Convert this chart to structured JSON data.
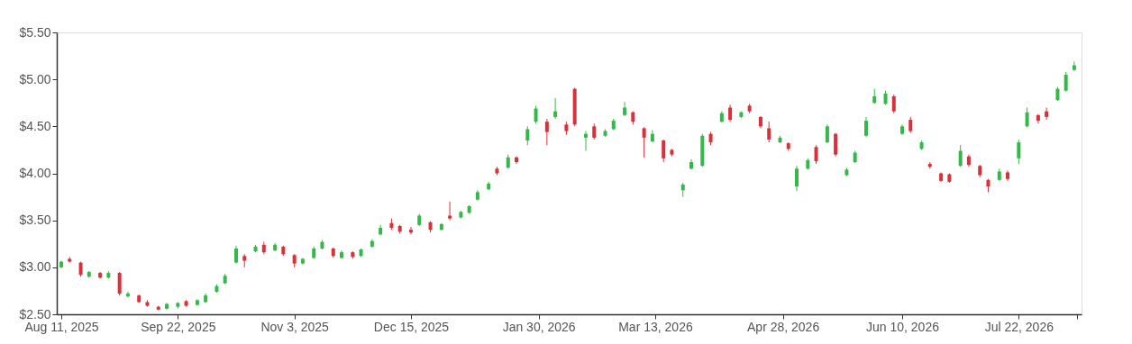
{
  "chart_data": {
    "type": "candlestick",
    "x": [
      "2025-08-11",
      "2025-08-14",
      "2025-08-18",
      "2025-08-21",
      "2025-08-25",
      "2025-08-28",
      "2025-09-01",
      "2025-09-04",
      "2025-09-08",
      "2025-09-11",
      "2025-09-15",
      "2025-09-18",
      "2025-09-22",
      "2025-09-25",
      "2025-09-29",
      "2025-10-02",
      "2025-10-06",
      "2025-10-09",
      "2025-10-13",
      "2025-10-16",
      "2025-10-20",
      "2025-10-23",
      "2025-10-27",
      "2025-10-30",
      "2025-11-03",
      "2025-11-06",
      "2025-11-10",
      "2025-11-13",
      "2025-11-17",
      "2025-11-20",
      "2025-11-24",
      "2025-11-27",
      "2025-12-01",
      "2025-12-04",
      "2025-12-08",
      "2025-12-11",
      "2025-12-15",
      "2025-12-18",
      "2025-12-22",
      "2025-12-26",
      "2025-12-29",
      "2026-01-02",
      "2026-01-05",
      "2026-01-08",
      "2026-01-12",
      "2026-01-15",
      "2026-01-19",
      "2026-01-22",
      "2026-01-26",
      "2026-01-29",
      "2026-02-02",
      "2026-02-05",
      "2026-02-09",
      "2026-02-12",
      "2026-02-16",
      "2026-02-19",
      "2026-02-23",
      "2026-02-26",
      "2026-03-02",
      "2026-03-05",
      "2026-03-09",
      "2026-03-12",
      "2026-03-16",
      "2026-03-19",
      "2026-03-23",
      "2026-03-26",
      "2026-03-30",
      "2026-04-02",
      "2026-04-06",
      "2026-04-09",
      "2026-04-13",
      "2026-04-16",
      "2026-04-20",
      "2026-04-23",
      "2026-04-27",
      "2026-04-30",
      "2026-05-03",
      "2026-05-07",
      "2026-05-10",
      "2026-05-14",
      "2026-05-17",
      "2026-05-21",
      "2026-05-24",
      "2026-05-28",
      "2026-05-31",
      "2026-06-04",
      "2026-06-07",
      "2026-06-10",
      "2026-06-13",
      "2026-06-17",
      "2026-06-20",
      "2026-06-24",
      "2026-06-27",
      "2026-07-01",
      "2026-07-04",
      "2026-07-08",
      "2026-07-11",
      "2026-07-15",
      "2026-07-18",
      "2026-07-22",
      "2026-07-25",
      "2026-07-29",
      "2026-08-01",
      "2026-08-05",
      "2026-08-08",
      "2026-08-11"
    ],
    "ohlc": [
      [
        3.0,
        3.07,
        2.99,
        3.06
      ],
      [
        3.09,
        3.11,
        3.05,
        3.06
      ],
      [
        3.05,
        3.06,
        2.9,
        2.92
      ],
      [
        2.9,
        2.96,
        2.89,
        2.95
      ],
      [
        2.94,
        2.95,
        2.88,
        2.89
      ],
      [
        2.89,
        2.96,
        2.88,
        2.94
      ],
      [
        2.94,
        2.95,
        2.7,
        2.72
      ],
      [
        2.69,
        2.74,
        2.68,
        2.72
      ],
      [
        2.7,
        2.71,
        2.62,
        2.63
      ],
      [
        2.63,
        2.65,
        2.58,
        2.59
      ],
      [
        2.58,
        2.59,
        2.54,
        2.55
      ],
      [
        2.56,
        2.62,
        2.55,
        2.61
      ],
      [
        2.58,
        2.63,
        2.56,
        2.62
      ],
      [
        2.64,
        2.65,
        2.58,
        2.59
      ],
      [
        2.6,
        2.66,
        2.59,
        2.65
      ],
      [
        2.63,
        2.72,
        2.62,
        2.7
      ],
      [
        2.74,
        2.82,
        2.73,
        2.8
      ],
      [
        2.83,
        2.93,
        2.82,
        2.91
      ],
      [
        3.05,
        3.23,
        3.04,
        3.2
      ],
      [
        3.12,
        3.14,
        3.0,
        3.07
      ],
      [
        3.17,
        3.24,
        3.16,
        3.22
      ],
      [
        3.24,
        3.27,
        3.14,
        3.16
      ],
      [
        3.18,
        3.26,
        3.17,
        3.24
      ],
      [
        3.22,
        3.23,
        3.12,
        3.14
      ],
      [
        3.13,
        3.14,
        3.0,
        3.04
      ],
      [
        3.04,
        3.1,
        3.03,
        3.09
      ],
      [
        3.1,
        3.22,
        3.09,
        3.2
      ],
      [
        3.2,
        3.29,
        3.19,
        3.27
      ],
      [
        3.2,
        3.21,
        3.1,
        3.12
      ],
      [
        3.1,
        3.18,
        3.09,
        3.16
      ],
      [
        3.16,
        3.17,
        3.09,
        3.11
      ],
      [
        3.12,
        3.2,
        3.11,
        3.19
      ],
      [
        3.22,
        3.3,
        3.21,
        3.28
      ],
      [
        3.35,
        3.45,
        3.34,
        3.42
      ],
      [
        3.47,
        3.52,
        3.4,
        3.42
      ],
      [
        3.44,
        3.45,
        3.36,
        3.38
      ],
      [
        3.4,
        3.43,
        3.35,
        3.37
      ],
      [
        3.45,
        3.57,
        3.44,
        3.55
      ],
      [
        3.48,
        3.49,
        3.37,
        3.4
      ],
      [
        3.4,
        3.47,
        3.39,
        3.46
      ],
      [
        3.55,
        3.7,
        3.5,
        3.52
      ],
      [
        3.53,
        3.6,
        3.52,
        3.59
      ],
      [
        3.58,
        3.66,
        3.57,
        3.65
      ],
      [
        3.72,
        3.82,
        3.71,
        3.8
      ],
      [
        3.83,
        3.91,
        3.82,
        3.89
      ],
      [
        4.05,
        4.07,
        3.98,
        4.0
      ],
      [
        4.06,
        4.2,
        4.05,
        4.17
      ],
      [
        4.17,
        4.18,
        4.1,
        4.12
      ],
      [
        4.35,
        4.5,
        4.3,
        4.47
      ],
      [
        4.55,
        4.72,
        4.53,
        4.69
      ],
      [
        4.55,
        4.58,
        4.3,
        4.44
      ],
      [
        4.6,
        4.8,
        4.58,
        4.66
      ],
      [
        4.52,
        4.55,
        4.41,
        4.45
      ],
      [
        4.9,
        4.91,
        4.5,
        4.52
      ],
      [
        4.38,
        4.45,
        4.24,
        4.42
      ],
      [
        4.5,
        4.53,
        4.36,
        4.38
      ],
      [
        4.4,
        4.47,
        4.39,
        4.45
      ],
      [
        4.47,
        4.58,
        4.46,
        4.56
      ],
      [
        4.62,
        4.76,
        4.61,
        4.7
      ],
      [
        4.65,
        4.66,
        4.52,
        4.55
      ],
      [
        4.48,
        4.49,
        4.17,
        4.38
      ],
      [
        4.34,
        4.46,
        4.33,
        4.42
      ],
      [
        4.35,
        4.36,
        4.12,
        4.16
      ],
      [
        4.25,
        4.26,
        4.18,
        4.2
      ],
      [
        3.82,
        3.9,
        3.75,
        3.88
      ],
      [
        4.05,
        4.15,
        4.04,
        4.12
      ],
      [
        4.08,
        4.42,
        4.07,
        4.4
      ],
      [
        4.42,
        4.44,
        4.3,
        4.33
      ],
      [
        4.55,
        4.66,
        4.54,
        4.64
      ],
      [
        4.7,
        4.73,
        4.55,
        4.57
      ],
      [
        4.6,
        4.66,
        4.59,
        4.65
      ],
      [
        4.72,
        4.74,
        4.64,
        4.66
      ],
      [
        4.6,
        4.61,
        4.48,
        4.5
      ],
      [
        4.48,
        4.55,
        4.33,
        4.36
      ],
      [
        4.33,
        4.4,
        4.32,
        4.38
      ],
      [
        4.32,
        4.33,
        4.24,
        4.26
      ],
      [
        3.86,
        4.08,
        3.81,
        4.05
      ],
      [
        4.05,
        4.16,
        4.04,
        4.14
      ],
      [
        4.28,
        4.3,
        4.1,
        4.13
      ],
      [
        4.33,
        4.52,
        4.32,
        4.5
      ],
      [
        4.42,
        4.43,
        4.18,
        4.2
      ],
      [
        3.98,
        4.06,
        3.97,
        4.04
      ],
      [
        4.12,
        4.24,
        4.11,
        4.22
      ],
      [
        4.4,
        4.6,
        4.39,
        4.56
      ],
      [
        4.75,
        4.9,
        4.74,
        4.82
      ],
      [
        4.74,
        4.88,
        4.73,
        4.85
      ],
      [
        4.82,
        4.84,
        4.64,
        4.66
      ],
      [
        4.42,
        4.52,
        4.41,
        4.5
      ],
      [
        4.57,
        4.6,
        4.43,
        4.45
      ],
      [
        4.26,
        4.35,
        4.25,
        4.33
      ],
      [
        4.1,
        4.12,
        4.05,
        4.07
      ],
      [
        4.0,
        4.01,
        3.91,
        3.92
      ],
      [
        3.99,
        4.0,
        3.9,
        3.91
      ],
      [
        4.08,
        4.3,
        4.07,
        4.24
      ],
      [
        4.18,
        4.2,
        4.07,
        4.09
      ],
      [
        4.08,
        4.09,
        3.96,
        3.98
      ],
      [
        3.93,
        3.94,
        3.8,
        3.86
      ],
      [
        3.93,
        4.05,
        3.92,
        4.02
      ],
      [
        4.01,
        4.03,
        3.92,
        3.94
      ],
      [
        4.16,
        4.36,
        4.1,
        4.33
      ],
      [
        4.5,
        4.7,
        4.49,
        4.65
      ],
      [
        4.62,
        4.63,
        4.53,
        4.56
      ],
      [
        4.66,
        4.7,
        4.57,
        4.6
      ],
      [
        4.78,
        4.92,
        4.77,
        4.9
      ],
      [
        4.88,
        5.08,
        4.87,
        5.05
      ],
      [
        5.1,
        5.19,
        5.09,
        5.15
      ]
    ],
    "colors": [
      "#34b84a",
      "#d9303a",
      "#d9303a",
      "#34b84a",
      "#d9303a",
      "#34b84a",
      "#d9303a",
      "#34b84a",
      "#d9303a",
      "#d9303a",
      "#d9303a",
      "#34b84a",
      "#34b84a",
      "#d9303a",
      "#34b84a",
      "#34b84a",
      "#34b84a",
      "#34b84a",
      "#34b84a",
      "#d9303a",
      "#34b84a",
      "#d9303a",
      "#34b84a",
      "#d9303a",
      "#d9303a",
      "#34b84a",
      "#34b84a",
      "#34b84a",
      "#d9303a",
      "#34b84a",
      "#d9303a",
      "#34b84a",
      "#34b84a",
      "#34b84a",
      "#d9303a",
      "#d9303a",
      "#d9303a",
      "#34b84a",
      "#d9303a",
      "#34b84a",
      "#d9303a",
      "#34b84a",
      "#34b84a",
      "#34b84a",
      "#34b84a",
      "#d9303a",
      "#34b84a",
      "#d9303a",
      "#34b84a",
      "#34b84a",
      "#d9303a",
      "#34b84a",
      "#d9303a",
      "#d9303a",
      "#34b84a",
      "#d9303a",
      "#34b84a",
      "#34b84a",
      "#34b84a",
      "#d9303a",
      "#d9303a",
      "#34b84a",
      "#d9303a",
      "#d9303a",
      "#34b84a",
      "#34b84a",
      "#34b84a",
      "#d9303a",
      "#34b84a",
      "#d9303a",
      "#34b84a",
      "#d9303a",
      "#d9303a",
      "#d9303a",
      "#34b84a",
      "#d9303a",
      "#34b84a",
      "#34b84a",
      "#d9303a",
      "#34b84a",
      "#d9303a",
      "#34b84a",
      "#34b84a",
      "#34b84a",
      "#34b84a",
      "#34b84a",
      "#d9303a",
      "#34b84a",
      "#d9303a",
      "#34b84a",
      "#d9303a",
      "#d9303a",
      "#d9303a",
      "#34b84a",
      "#d9303a",
      "#d9303a",
      "#d9303a",
      "#34b84a",
      "#d9303a",
      "#34b84a",
      "#34b84a",
      "#d9303a",
      "#d9303a",
      "#34b84a",
      "#34b84a",
      "#34b84a"
    ],
    "xlim": [
      "2025-08-11",
      "2026-08-12"
    ],
    "xticks": [
      {
        "value": "2025-08-11",
        "label": "Aug 11, 2025"
      },
      {
        "value": "2025-09-22",
        "label": "Sep 22, 2025"
      },
      {
        "value": "2025-11-03",
        "label": "Nov 3, 2025"
      },
      {
        "value": "2025-12-15",
        "label": "Dec 15, 2025"
      },
      {
        "value": "2026-01-30",
        "label": "Jan 30, 2026"
      },
      {
        "value": "2026-03-13",
        "label": "Mar 13, 2026"
      },
      {
        "value": "2026-04-28",
        "label": "Apr 28, 2026"
      },
      {
        "value": "2026-06-10",
        "label": "Jun 10, 2026"
      },
      {
        "value": "2026-07-22",
        "label": "Jul 22, 2026"
      },
      {
        "value": "2026-08-12",
        "label": null
      }
    ],
    "ylim": [
      2.5,
      5.5
    ],
    "yticks": [
      {
        "value": 2.5,
        "label": "$2.50"
      },
      {
        "value": 3.0,
        "label": "$3.00"
      },
      {
        "value": 3.5,
        "label": "$3.50"
      },
      {
        "value": 4.0,
        "label": "$4.00"
      },
      {
        "value": 4.5,
        "label": "$4.50"
      },
      {
        "value": 5.0,
        "label": "$5.00"
      },
      {
        "value": 5.5,
        "label": "$5.50"
      }
    ],
    "grid": false
  }
}
